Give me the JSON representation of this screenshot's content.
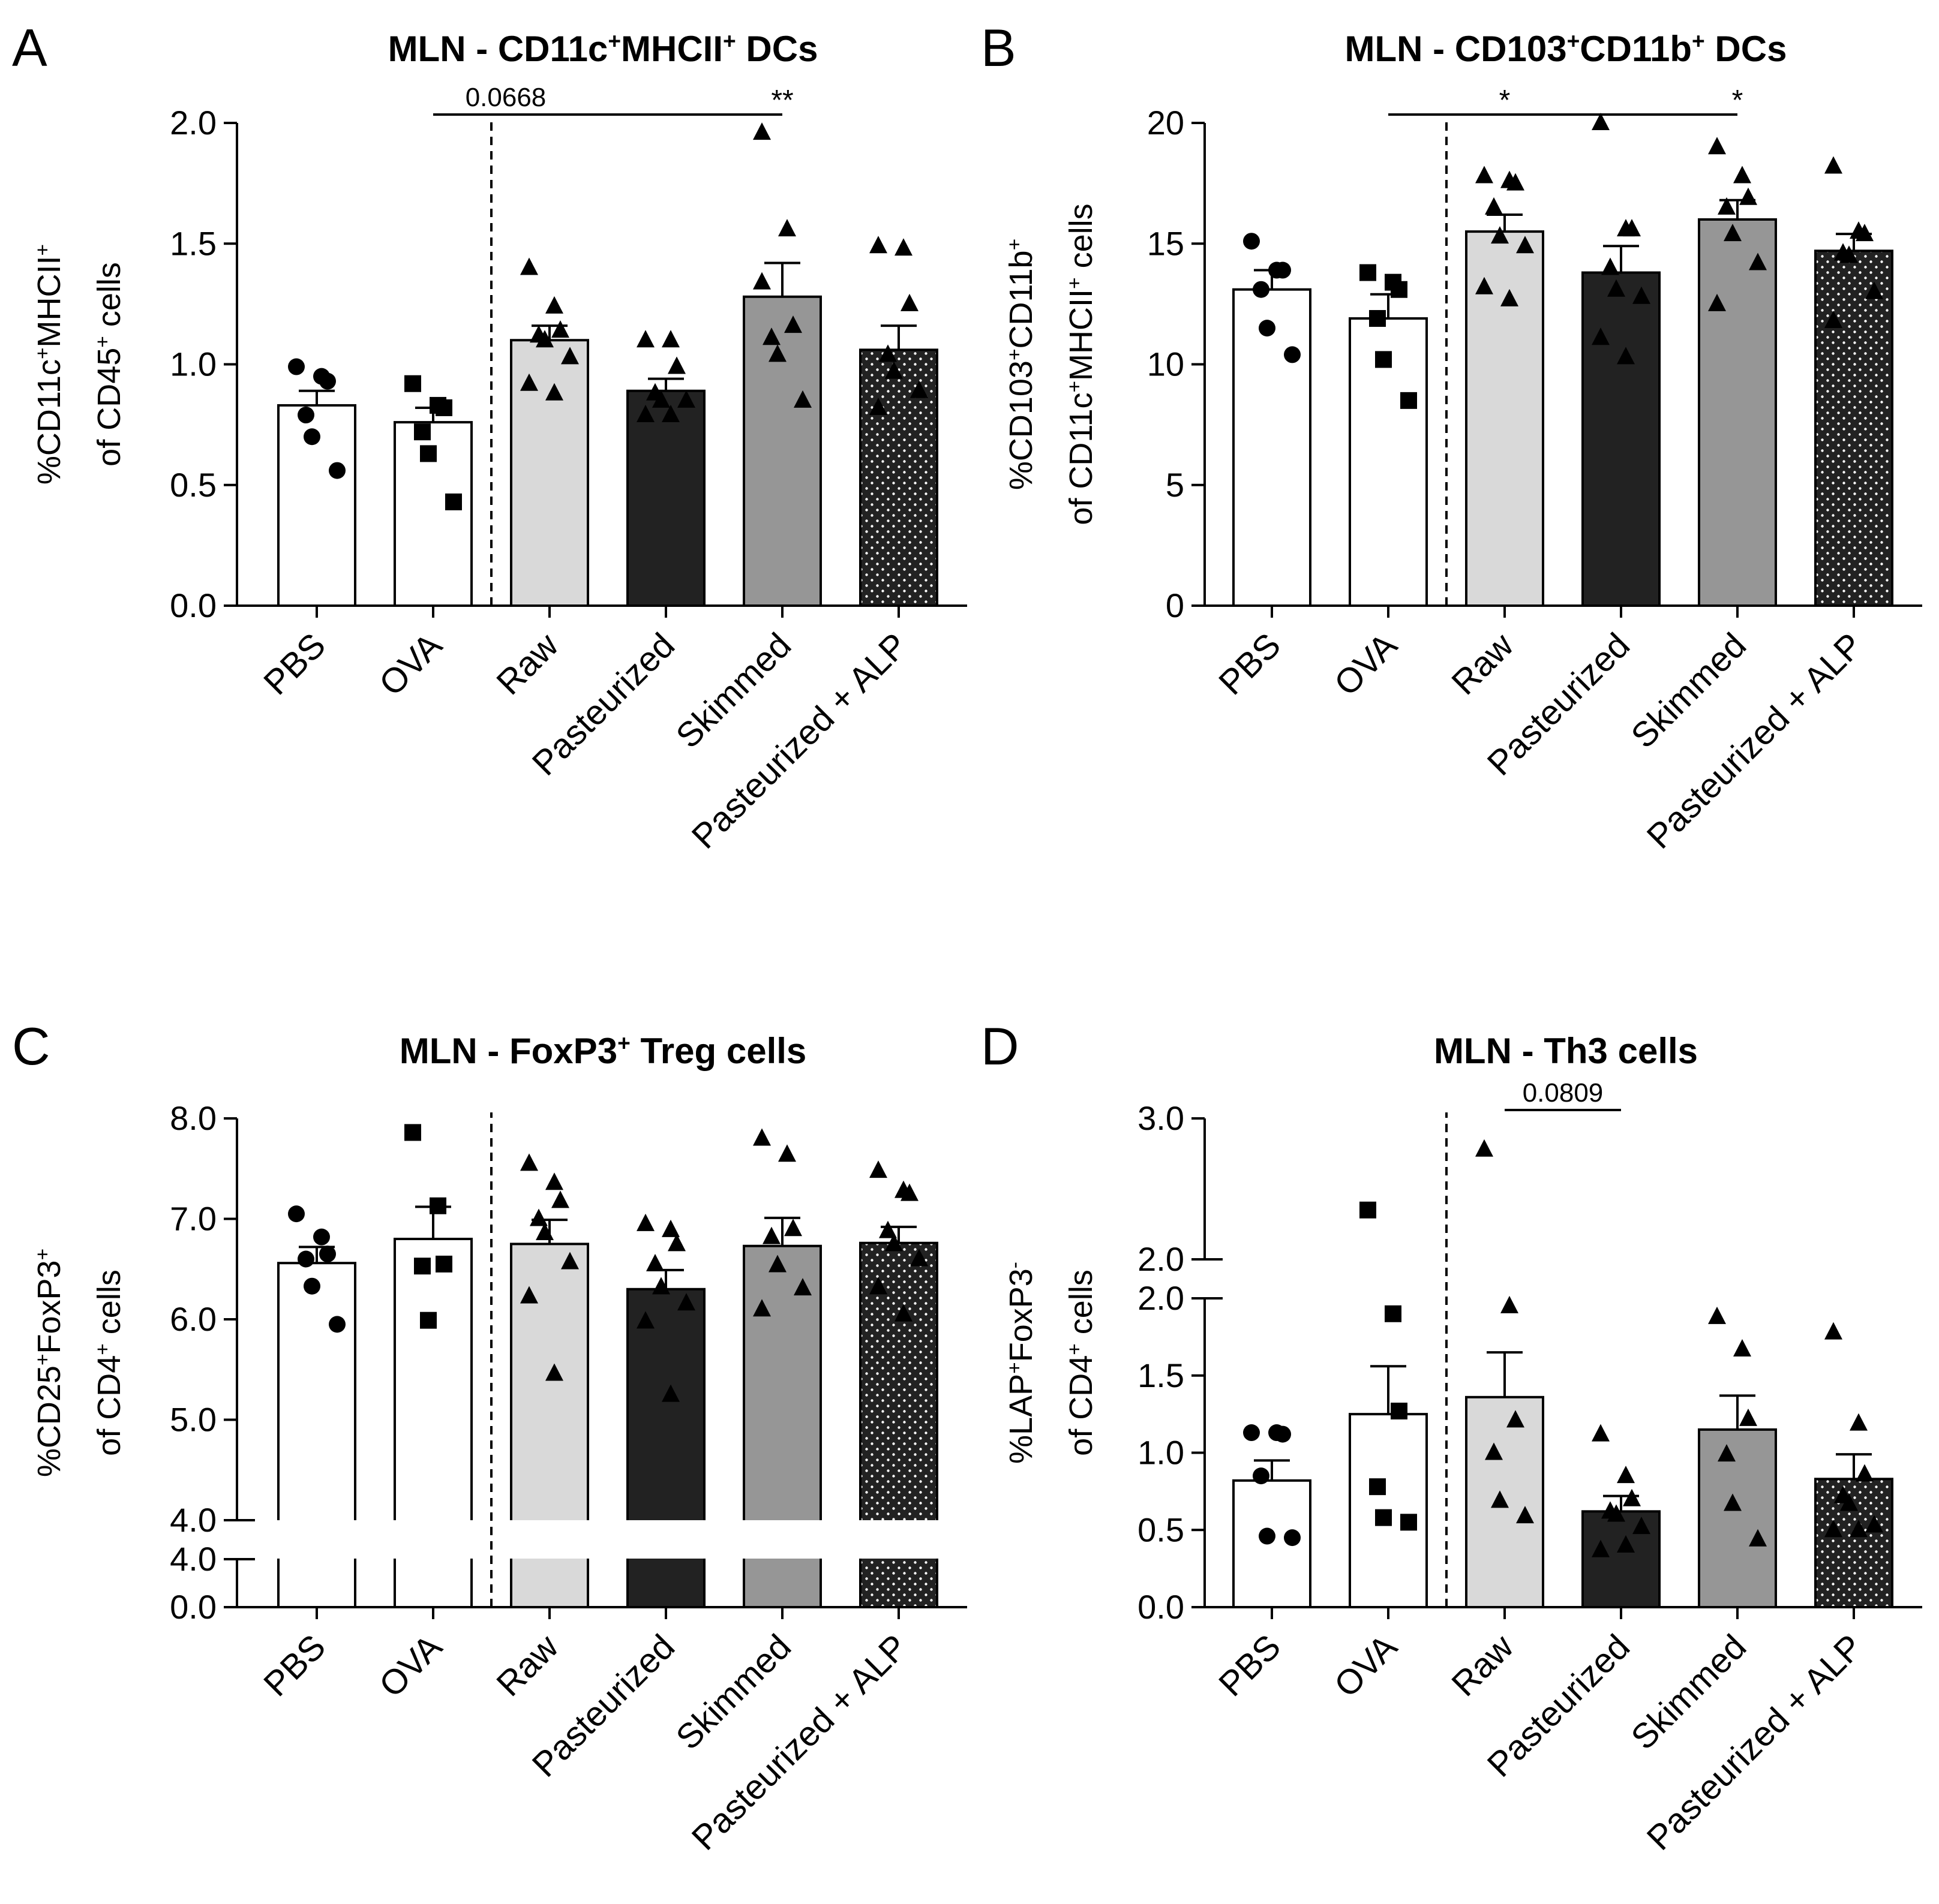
{
  "chart_data": [
    {
      "type": "bar",
      "panel": "A",
      "title_parts": [
        "MLN - CD11c",
        "+",
        "MHCII",
        "+",
        " DCs"
      ],
      "ylabel_lines": [
        [
          "%CD11c",
          "+",
          "MHCII",
          "+"
        ],
        [
          "of CD45",
          "+",
          " cells"
        ]
      ],
      "categories": [
        "PBS",
        "OVA",
        "Raw",
        "Pasteurized",
        "Skimmed",
        "Pasteurized + ALP"
      ],
      "means": [
        0.83,
        0.76,
        1.1,
        0.89,
        1.28,
        1.06
      ],
      "sem": [
        0.06,
        0.06,
        0.06,
        0.05,
        0.14,
        0.1
      ],
      "points": [
        [
          0.99,
          0.95,
          0.93,
          0.79,
          0.7,
          0.56
        ],
        [
          0.92,
          0.83,
          0.82,
          0.72,
          0.63,
          0.43
        ],
        [
          1.4,
          1.24,
          1.14,
          1.12,
          1.1,
          1.03,
          0.92,
          0.88
        ],
        [
          1.1,
          1.1,
          0.99,
          0.88,
          0.85,
          0.85,
          0.79,
          0.79
        ],
        [
          1.96,
          1.56,
          1.16,
          1.11,
          1.04,
          0.85,
          1.34
        ],
        [
          1.49,
          1.48,
          1.25,
          1.04,
          0.97,
          0.89,
          0.82
        ]
      ],
      "markers": [
        "circle",
        "square",
        "triangle",
        "triangle",
        "triangle",
        "triangle"
      ],
      "ylim": [
        0,
        2.0
      ],
      "yticks": [
        "0.0",
        "0.5",
        "1.0",
        "1.5",
        "2.0"
      ],
      "ytick_values": [
        0,
        0.5,
        1.0,
        1.5,
        2.0
      ],
      "annotations": [
        {
          "text": "0.0668",
          "from": 1,
          "to": 4
        },
        {
          "text": "**",
          "at": 4
        }
      ]
    },
    {
      "type": "bar",
      "panel": "B",
      "title_parts": [
        "MLN - CD103",
        "+",
        "CD11b",
        "+",
        " DCs"
      ],
      "ylabel_lines": [
        [
          "%CD103",
          "+",
          "CD11b",
          "+"
        ],
        [
          "of CD11c",
          "+",
          "MHCII",
          "+",
          " cells"
        ]
      ],
      "categories": [
        "PBS",
        "OVA",
        "Raw",
        "Pasteurized",
        "Skimmed",
        "Pasteurized + ALP"
      ],
      "means": [
        13.1,
        11.9,
        15.5,
        13.8,
        16.0,
        14.7
      ],
      "sem": [
        0.8,
        1.0,
        0.7,
        1.1,
        0.8,
        0.7
      ],
      "points": [
        [
          15.1,
          13.9,
          13.9,
          13.1,
          11.5,
          10.4
        ],
        [
          13.8,
          13.4,
          13.1,
          11.9,
          10.2,
          8.5
        ],
        [
          17.8,
          17.6,
          17.5,
          16.5,
          15.3,
          14.9,
          13.2,
          12.7
        ],
        [
          20.0,
          15.6,
          15.6,
          14.0,
          13.1,
          12.8,
          11.1,
          10.3
        ],
        [
          19.0,
          17.8,
          16.9,
          16.5,
          15.4,
          14.2,
          12.5
        ],
        [
          18.2,
          15.5,
          15.4,
          14.6,
          14.5,
          13.0,
          11.8
        ]
      ],
      "markers": [
        "circle",
        "square",
        "triangle",
        "triangle",
        "triangle",
        "triangle"
      ],
      "ylim": [
        0,
        20
      ],
      "yticks": [
        "0",
        "5",
        "10",
        "15",
        "20"
      ],
      "ytick_values": [
        0,
        5,
        10,
        15,
        20
      ],
      "annotations": [
        {
          "text": "*",
          "from": 1,
          "to": 4
        },
        {
          "text": "*",
          "at": 2
        },
        {
          "text": "*",
          "at": 4
        }
      ]
    },
    {
      "type": "bar",
      "panel": "C",
      "title_parts": [
        "MLN - FoxP3",
        "+",
        " Treg cells"
      ],
      "ylabel_lines": [
        [
          "%CD25",
          "+",
          "FoxP3",
          "+"
        ],
        [
          "of CD4",
          "+",
          " cells"
        ]
      ],
      "categories": [
        "PBS",
        "OVA",
        "Raw",
        "Pasteurized",
        "Skimmed",
        "Pasteurized + ALP"
      ],
      "means": [
        6.56,
        6.8,
        6.75,
        6.3,
        6.73,
        6.76
      ],
      "sem": [
        0.16,
        0.32,
        0.24,
        0.19,
        0.28,
        0.16
      ],
      "points": [
        [
          7.05,
          6.82,
          6.65,
          6.6,
          6.33,
          5.95
        ],
        [
          7.86,
          7.13,
          6.55,
          6.53,
          5.99
        ],
        [
          7.55,
          7.36,
          7.18,
          7.0,
          6.86,
          6.57,
          6.23,
          5.46
        ],
        [
          6.95,
          6.89,
          6.75,
          6.55,
          6.32,
          6.16,
          5.98,
          5.25
        ],
        [
          7.8,
          7.64,
          6.9,
          6.82,
          6.54,
          6.31,
          6.1
        ],
        [
          7.48,
          7.28,
          7.25,
          6.88,
          6.75,
          6.6,
          6.32,
          6.05
        ]
      ],
      "markers": [
        "circle",
        "square",
        "triangle",
        "triangle",
        "triangle",
        "triangle"
      ],
      "ylim": [
        0,
        8.0
      ],
      "axis_break": {
        "lower": [
          0,
          4.0
        ],
        "upper": [
          4.0,
          8.0
        ]
      },
      "yticks": [
        "0.0",
        "4.0",
        "4.0",
        "5.0",
        "6.0",
        "7.0",
        "8.0"
      ],
      "ytick_values": [
        0,
        4.0,
        4.0,
        5.0,
        6.0,
        7.0,
        8.0
      ],
      "annotations": []
    },
    {
      "type": "bar",
      "panel": "D",
      "title_parts": [
        "MLN - Th3 cells"
      ],
      "ylabel_lines": [
        [
          "%LAP",
          "+",
          "FoxP3",
          "-"
        ],
        [
          "of CD4",
          "+",
          " cells"
        ]
      ],
      "categories": [
        "PBS",
        "OVA",
        "Raw",
        "Pasteurized",
        "Skimmed",
        "Pasteurized + ALP"
      ],
      "means": [
        0.82,
        1.25,
        1.36,
        0.62,
        1.15,
        0.83
      ],
      "sem": [
        0.13,
        0.31,
        0.29,
        0.1,
        0.22,
        0.16
      ],
      "points": [
        [
          1.13,
          1.13,
          1.12,
          0.85,
          0.46,
          0.45
        ],
        [
          2.35,
          1.9,
          1.27,
          0.78,
          0.58,
          0.55
        ],
        [
          2.78,
          1.95,
          1.21,
          1.0,
          0.69,
          0.59
        ],
        [
          1.12,
          0.85,
          0.7,
          0.62,
          0.6,
          0.52,
          0.37,
          0.4
        ],
        [
          1.88,
          1.67,
          1.22,
          0.99,
          0.67,
          0.44
        ],
        [
          1.78,
          1.19,
          0.86,
          0.72,
          0.67,
          0.53,
          0.5,
          0.5
        ]
      ],
      "markers": [
        "circle",
        "square",
        "triangle",
        "triangle",
        "triangle",
        "triangle"
      ],
      "ylim": [
        0,
        3.0
      ],
      "axis_break": {
        "lower": [
          0,
          2.0
        ],
        "upper": [
          2.0,
          3.0
        ]
      },
      "yticks": [
        "0.0",
        "0.5",
        "1.0",
        "1.5",
        "2.0",
        "2.0",
        "3.0"
      ],
      "ytick_values": [
        0,
        0.5,
        1.0,
        1.5,
        2.0,
        2.0,
        3.0
      ],
      "annotations": [
        {
          "text": "0.0809",
          "from": 2,
          "to": 3
        }
      ]
    }
  ],
  "colors": {
    "bar_fills": [
      "#ffffff",
      "#ffffff",
      "#d9d9d9",
      "#222222",
      "#969696",
      "#222222"
    ],
    "dotted_pattern_bar_index": 5,
    "ink": "#000000"
  }
}
